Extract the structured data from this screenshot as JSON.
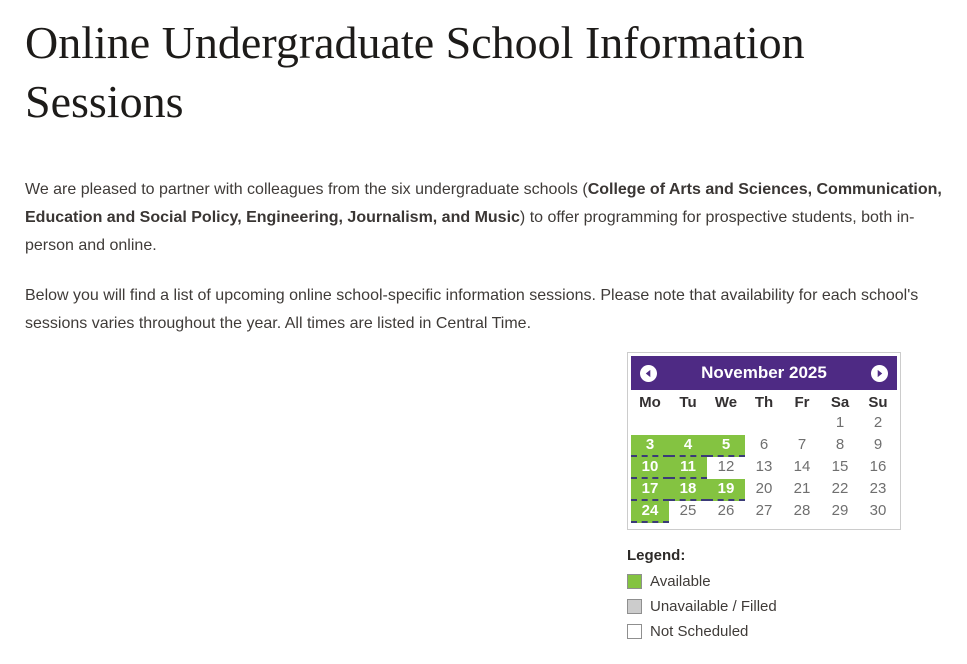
{
  "page": {
    "title": "Online Undergraduate School Information Sessions",
    "paragraph1": {
      "pre": "We are pleased to partner with colleagues from the six undergraduate schools (",
      "bold": "College of Arts and Sciences, Communication, Education and Social Policy, Engineering, Journalism, and Music",
      "post": ") to offer programming for prospective students, both in-person and online."
    },
    "paragraph2": "Below you will find a list of upcoming online school-specific information sessions. Please note that availability for each school's sessions varies throughout the year. All times are listed in Central Time."
  },
  "colors": {
    "header_purple": "#4e2a84",
    "available_green": "#84c341",
    "unavailable_gray": "#cccccc",
    "dashed_border": "#3b3b78",
    "body_text": "#3f3b38"
  },
  "calendar": {
    "title": "November 2025",
    "prev_icon": "chevron-left-circle",
    "next_icon": "chevron-right-circle",
    "day_headers": [
      "Mo",
      "Tu",
      "We",
      "Th",
      "Fr",
      "Sa",
      "Su"
    ],
    "weeks": [
      [
        {
          "d": "",
          "s": "empty"
        },
        {
          "d": "",
          "s": "empty"
        },
        {
          "d": "",
          "s": "empty"
        },
        {
          "d": "",
          "s": "empty"
        },
        {
          "d": "",
          "s": "empty"
        },
        {
          "d": "1",
          "s": "default"
        },
        {
          "d": "2",
          "s": "default"
        }
      ],
      [
        {
          "d": "3",
          "s": "available"
        },
        {
          "d": "4",
          "s": "available"
        },
        {
          "d": "5",
          "s": "available"
        },
        {
          "d": "6",
          "s": "default"
        },
        {
          "d": "7",
          "s": "default"
        },
        {
          "d": "8",
          "s": "default"
        },
        {
          "d": "9",
          "s": "default"
        }
      ],
      [
        {
          "d": "10",
          "s": "available"
        },
        {
          "d": "11",
          "s": "available"
        },
        {
          "d": "12",
          "s": "default"
        },
        {
          "d": "13",
          "s": "default"
        },
        {
          "d": "14",
          "s": "default"
        },
        {
          "d": "15",
          "s": "default"
        },
        {
          "d": "16",
          "s": "default"
        }
      ],
      [
        {
          "d": "17",
          "s": "available"
        },
        {
          "d": "18",
          "s": "available"
        },
        {
          "d": "19",
          "s": "available"
        },
        {
          "d": "20",
          "s": "default"
        },
        {
          "d": "21",
          "s": "default"
        },
        {
          "d": "22",
          "s": "default"
        },
        {
          "d": "23",
          "s": "default"
        }
      ],
      [
        {
          "d": "24",
          "s": "available"
        },
        {
          "d": "25",
          "s": "default"
        },
        {
          "d": "26",
          "s": "default"
        },
        {
          "d": "27",
          "s": "default"
        },
        {
          "d": "28",
          "s": "default"
        },
        {
          "d": "29",
          "s": "default"
        },
        {
          "d": "30",
          "s": "default"
        }
      ]
    ]
  },
  "legend": {
    "title": "Legend:",
    "items": [
      {
        "label": "Available",
        "state": "available"
      },
      {
        "label": "Unavailable / Filled",
        "state": "unavailable"
      },
      {
        "label": "Not Scheduled",
        "state": "not-scheduled"
      }
    ]
  }
}
